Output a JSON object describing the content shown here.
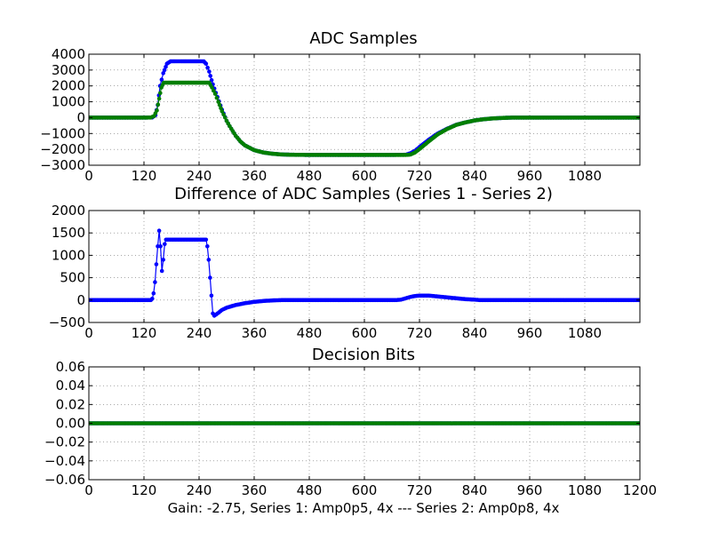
{
  "footer": "Gain: -2.75, Series 1: Amp0p5, 4x --- Series 2: Amp0p8, 4x",
  "colors": {
    "series_blue": "#0000ff",
    "series_green": "#007f00",
    "grid": "#000000"
  },
  "chart_data": [
    {
      "type": "line",
      "title": "ADC Samples",
      "xlabel": "",
      "ylabel": "",
      "xlim": [
        0,
        1200
      ],
      "ylim": [
        -3000,
        4000
      ],
      "xticks": [
        0,
        120,
        240,
        360,
        480,
        600,
        720,
        840,
        960,
        1080
      ],
      "yticks": [
        4000,
        3000,
        2000,
        1000,
        0,
        -1000,
        -2000,
        -3000
      ],
      "grid": true,
      "series": [
        {
          "name": "Series 1",
          "color": "#0000ff",
          "marker": "dot",
          "points": [
            [
              0,
              0
            ],
            [
              120,
              0
            ],
            [
              138,
              10
            ],
            [
              145,
              150
            ],
            [
              150,
              800
            ],
            [
              155,
              2000
            ],
            [
              162,
              2800
            ],
            [
              170,
              3400
            ],
            [
              178,
              3550
            ],
            [
              190,
              3550
            ],
            [
              200,
              3550
            ],
            [
              220,
              3550
            ],
            [
              240,
              3550
            ],
            [
              250,
              3550
            ],
            [
              255,
              3400
            ],
            [
              262,
              2900
            ],
            [
              270,
              2100
            ],
            [
              280,
              1300
            ],
            [
              290,
              500
            ],
            [
              300,
              -200
            ],
            [
              310,
              -700
            ],
            [
              320,
              -1150
            ],
            [
              330,
              -1500
            ],
            [
              340,
              -1750
            ],
            [
              360,
              -2050
            ],
            [
              380,
              -2200
            ],
            [
              400,
              -2280
            ],
            [
              420,
              -2320
            ],
            [
              440,
              -2340
            ],
            [
              480,
              -2350
            ],
            [
              540,
              -2350
            ],
            [
              600,
              -2350
            ],
            [
              660,
              -2350
            ],
            [
              690,
              -2340
            ],
            [
              700,
              -2250
            ],
            [
              710,
              -2100
            ],
            [
              720,
              -1850
            ],
            [
              740,
              -1400
            ],
            [
              760,
              -1000
            ],
            [
              780,
              -700
            ],
            [
              800,
              -450
            ],
            [
              820,
              -300
            ],
            [
              840,
              -180
            ],
            [
              860,
              -100
            ],
            [
              880,
              -50
            ],
            [
              900,
              -20
            ],
            [
              920,
              0
            ],
            [
              960,
              0
            ],
            [
              1080,
              0
            ],
            [
              1200,
              0
            ]
          ]
        },
        {
          "name": "Series 2",
          "color": "#007f00",
          "marker": "dot",
          "points": [
            [
              0,
              0
            ],
            [
              120,
              0
            ],
            [
              135,
              10
            ],
            [
              142,
              100
            ],
            [
              148,
              450
            ],
            [
              153,
              1200
            ],
            [
              158,
              1900
            ],
            [
              163,
              2200
            ],
            [
              170,
              2200
            ],
            [
              200,
              2200
            ],
            [
              230,
              2200
            ],
            [
              262,
              2200
            ],
            [
              268,
              1900
            ],
            [
              275,
              1500
            ],
            [
              282,
              1000
            ],
            [
              290,
              400
            ],
            [
              300,
              -200
            ],
            [
              310,
              -700
            ],
            [
              320,
              -1150
            ],
            [
              330,
              -1500
            ],
            [
              340,
              -1750
            ],
            [
              360,
              -2050
            ],
            [
              380,
              -2200
            ],
            [
              400,
              -2280
            ],
            [
              420,
              -2320
            ],
            [
              440,
              -2340
            ],
            [
              480,
              -2350
            ],
            [
              540,
              -2350
            ],
            [
              600,
              -2350
            ],
            [
              660,
              -2350
            ],
            [
              690,
              -2350
            ],
            [
              700,
              -2330
            ],
            [
              710,
              -2200
            ],
            [
              720,
              -1980
            ],
            [
              740,
              -1500
            ],
            [
              760,
              -1050
            ],
            [
              780,
              -720
            ],
            [
              800,
              -460
            ],
            [
              820,
              -300
            ],
            [
              840,
              -180
            ],
            [
              860,
              -100
            ],
            [
              880,
              -50
            ],
            [
              900,
              -20
            ],
            [
              920,
              0
            ],
            [
              960,
              0
            ],
            [
              1080,
              0
            ],
            [
              1200,
              0
            ]
          ]
        }
      ]
    },
    {
      "type": "line",
      "title": "Difference of ADC Samples (Series 1 - Series 2)",
      "xlabel": "",
      "ylabel": "",
      "xlim": [
        0,
        1200
      ],
      "ylim": [
        -500,
        2000
      ],
      "xticks": [
        0,
        120,
        240,
        360,
        480,
        600,
        720,
        840,
        960,
        1080
      ],
      "yticks": [
        2000,
        1500,
        1000,
        500,
        0,
        -500
      ],
      "grid": true,
      "series": [
        {
          "name": "Difference",
          "color": "#0000ff",
          "marker": "dot",
          "points": [
            [
              0,
              0
            ],
            [
              135,
              0
            ],
            [
              138,
              30
            ],
            [
              141,
              150
            ],
            [
              144,
              400
            ],
            [
              147,
              800
            ],
            [
              150,
              1200
            ],
            [
              153,
              1550
            ],
            [
              156,
              1200
            ],
            [
              159,
              650
            ],
            [
              162,
              900
            ],
            [
              165,
              1250
            ],
            [
              168,
              1350
            ],
            [
              180,
              1350
            ],
            [
              200,
              1350
            ],
            [
              220,
              1350
            ],
            [
              240,
              1350
            ],
            [
              255,
              1350
            ],
            [
              258,
              1200
            ],
            [
              261,
              900
            ],
            [
              264,
              500
            ],
            [
              267,
              100
            ],
            [
              270,
              -300
            ],
            [
              273,
              -350
            ],
            [
              280,
              -300
            ],
            [
              290,
              -220
            ],
            [
              300,
              -170
            ],
            [
              320,
              -110
            ],
            [
              340,
              -70
            ],
            [
              360,
              -40
            ],
            [
              380,
              -20
            ],
            [
              400,
              -8
            ],
            [
              420,
              0
            ],
            [
              480,
              0
            ],
            [
              600,
              0
            ],
            [
              670,
              0
            ],
            [
              680,
              10
            ],
            [
              690,
              40
            ],
            [
              700,
              70
            ],
            [
              710,
              90
            ],
            [
              720,
              100
            ],
            [
              740,
              100
            ],
            [
              760,
              80
            ],
            [
              780,
              60
            ],
            [
              800,
              40
            ],
            [
              820,
              20
            ],
            [
              840,
              10
            ],
            [
              850,
              0
            ],
            [
              900,
              0
            ],
            [
              1080,
              0
            ],
            [
              1200,
              0
            ]
          ]
        }
      ]
    },
    {
      "type": "line",
      "title": "Decision Bits",
      "xlabel": "",
      "ylabel": "",
      "xlim": [
        0,
        1200
      ],
      "ylim": [
        -0.06,
        0.06
      ],
      "xticks": [
        0,
        120,
        240,
        360,
        480,
        600,
        720,
        840,
        960,
        1080,
        1200
      ],
      "yticks": [
        "0.06",
        "0.04",
        "0.02",
        "0.00",
        "−0.02",
        "−0.04",
        "−0.06"
      ],
      "ytick_values": [
        0.06,
        0.04,
        0.02,
        0.0,
        -0.02,
        -0.04,
        -0.06
      ],
      "grid": true,
      "series": [
        {
          "name": "Series 1",
          "color": "#0000ff",
          "marker": "dot",
          "points": [
            [
              0,
              0
            ],
            [
              1200,
              0
            ]
          ]
        },
        {
          "name": "Series 2",
          "color": "#007f00",
          "marker": "dot",
          "points": [
            [
              0,
              0
            ],
            [
              1200,
              0
            ]
          ]
        }
      ]
    }
  ]
}
